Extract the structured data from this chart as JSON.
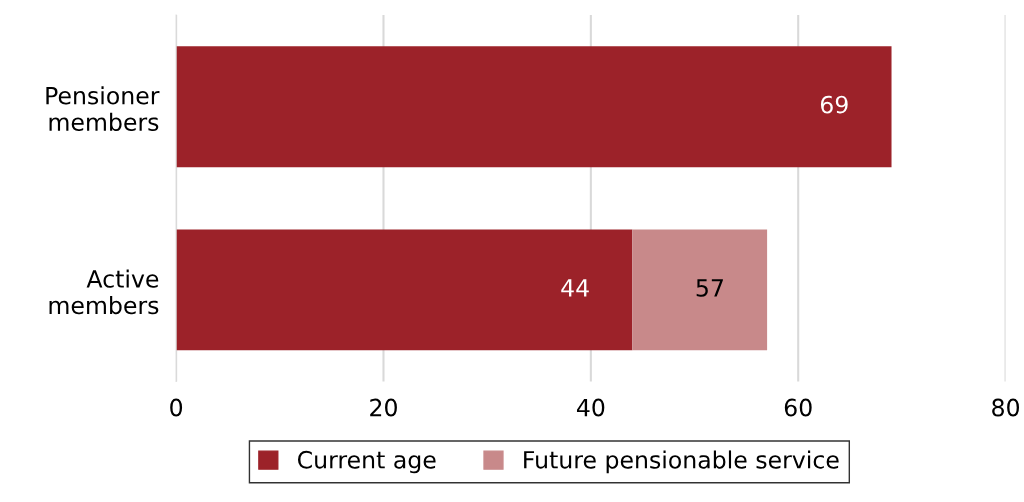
{
  "chart_data": {
    "type": "bar",
    "orientation": "horizontal",
    "stacked": true,
    "categories": [
      "Pensioner\nmembers",
      "Active\nmembers"
    ],
    "series": [
      {
        "name": "Current age",
        "color": "#9c2229",
        "values": [
          69,
          44
        ],
        "value_labels": [
          "69",
          "44"
        ]
      },
      {
        "name": "Future pensionable service",
        "color": "#c8898a",
        "values": [
          null,
          13
        ]
      }
    ],
    "totals": [
      null,
      "57"
    ],
    "xlim": [
      0,
      80
    ],
    "xticks": [
      0,
      20,
      40,
      60,
      80
    ],
    "grid": "x",
    "legend": "bottom"
  }
}
